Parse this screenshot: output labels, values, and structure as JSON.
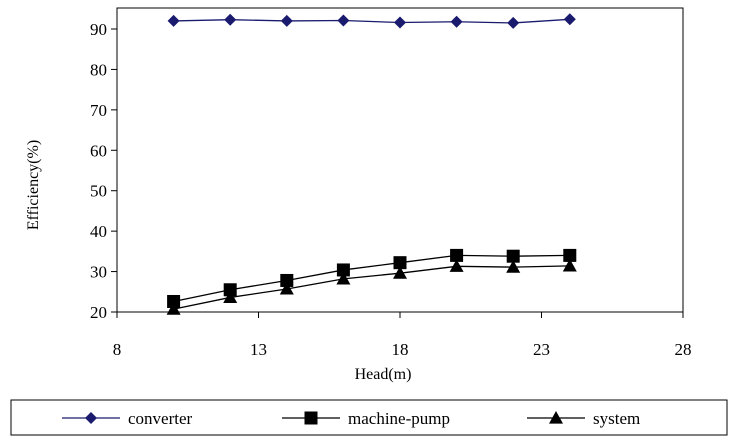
{
  "chart_data": {
    "type": "line",
    "title": "",
    "xlabel": "Head(m)",
    "ylabel": "Efficiency(%)",
    "xlim": [
      8,
      28
    ],
    "ylim": [
      20,
      95
    ],
    "xticks": [
      8,
      13,
      18,
      23,
      28
    ],
    "yticks": [
      20,
      30,
      40,
      50,
      60,
      70,
      80,
      90
    ],
    "grid": false,
    "legend_position": "bottom",
    "x": [
      10,
      12,
      14,
      16,
      18,
      20,
      22,
      24
    ],
    "series": [
      {
        "name": "converter",
        "marker": "diamond",
        "color": "#1a1a6e",
        "values": [
          92.0,
          92.3,
          92.0,
          92.1,
          91.6,
          91.8,
          91.5,
          92.4
        ]
      },
      {
        "name": "machine-pump",
        "marker": "square",
        "color": "#000000",
        "values": [
          22.6,
          25.5,
          27.8,
          30.4,
          32.2,
          34.0,
          33.8,
          34.0
        ]
      },
      {
        "name": "system",
        "marker": "triangle",
        "color": "#000000",
        "values": [
          20.7,
          23.6,
          25.7,
          28.2,
          29.6,
          31.3,
          31.1,
          31.4
        ]
      }
    ]
  }
}
